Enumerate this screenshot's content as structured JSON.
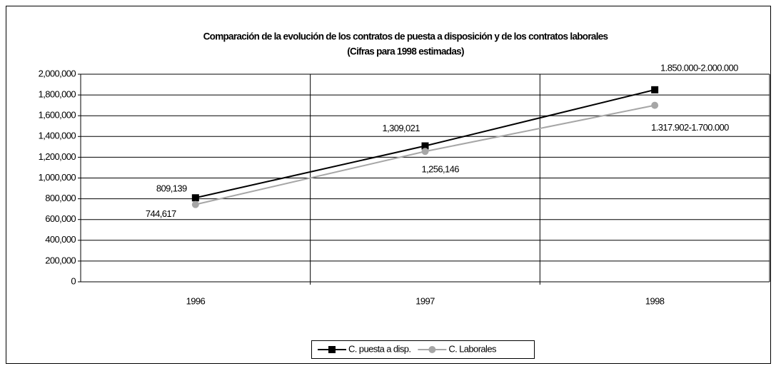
{
  "chart_data": {
    "type": "line",
    "title": "Comparación de la evolución de los contratos de puesta a disposición y de los contratos laborales",
    "subtitle": "(Cifras para 1998 estimadas)",
    "categories": [
      "1996",
      "1997",
      "1998"
    ],
    "series": [
      {
        "name": "C. puesta a disp.",
        "color": "#000000",
        "marker": "square",
        "values": [
          809139,
          1309021,
          1850000
        ],
        "value_labels": [
          "809,139",
          "1,309,021",
          "1.850.000-2.000.000"
        ]
      },
      {
        "name": "C. Laborales",
        "color": "#a6a6a6",
        "marker": "circle",
        "values": [
          744617,
          1256146,
          1700000
        ],
        "value_labels": [
          "744,617",
          "1,256,146",
          "1.317.902-1.700.000"
        ]
      }
    ],
    "ylim": [
      0,
      2000000
    ],
    "yticks": [
      0,
      {
        "value": 200000,
        "label": "200,000"
      },
      {
        "value": 400000,
        "label": "400,000"
      },
      {
        "value": 600000,
        "label": "600,000"
      },
      {
        "value": 800000,
        "label": "800,000"
      },
      {
        "value": 1000000,
        "label": "1,000,000"
      },
      {
        "value": 1200000,
        "label": "1,200,000"
      },
      {
        "value": 1400000,
        "label": "1,400,000"
      },
      {
        "value": 1600000,
        "label": "1,600,000"
      },
      {
        "value": 1800000,
        "label": "1,800,000"
      },
      {
        "value": 2000000,
        "label": "2,000,000"
      }
    ],
    "grid": true,
    "legend": "bottom"
  }
}
